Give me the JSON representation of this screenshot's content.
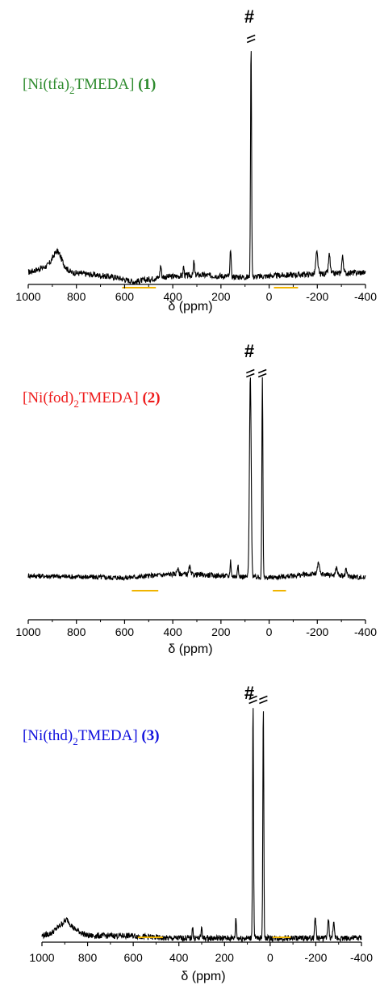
{
  "chart_data": [
    {
      "type": "line",
      "compound": {
        "name": "[Ni(tfa)",
        "sub": "2",
        "rest": "TMEDA]",
        "number": "(1)",
        "color": "#2e8b2e"
      },
      "xlabel": "δ (ppm)",
      "xlim": [
        1000,
        -400
      ],
      "xticks": [
        "1000",
        "800",
        "600",
        "400",
        "200",
        "0",
        "-200",
        "-400"
      ],
      "xtick_values": [
        1000,
        800,
        600,
        400,
        200,
        0,
        -200,
        -400
      ],
      "annotation": "#",
      "series": [
        {
          "baseline": [
            [
              1000,
              0.02
            ],
            [
              880,
              0.06
            ],
            [
              820,
              0.02
            ],
            [
              640,
              0.0
            ],
            [
              560,
              -0.02
            ],
            [
              450,
              0.0
            ],
            [
              300,
              0.01
            ],
            [
              100,
              0.0
            ],
            [
              -100,
              0.01
            ],
            [
              -400,
              0.02
            ]
          ],
          "peaks": [
            {
              "x": 880,
              "height": 0.05,
              "width": 25
            },
            {
              "x": 450,
              "height": 0.05,
              "width": 4
            },
            {
              "x": 355,
              "height": 0.04,
              "width": 3
            },
            {
              "x": 312,
              "height": 0.06,
              "width": 3
            },
            {
              "x": 160,
              "height": 0.12,
              "width": 3
            },
            {
              "x": 75,
              "height": 1.0,
              "width": 3,
              "broken": true
            },
            {
              "x": -198,
              "height": 0.09,
              "width": 6
            },
            {
              "x": -250,
              "height": 0.08,
              "width": 5
            },
            {
              "x": -305,
              "height": 0.07,
              "width": 5
            }
          ]
        }
      ],
      "highlights": [
        [
          610,
          470
        ],
        [
          -20,
          -120
        ]
      ],
      "highlight_color": "#f0b400"
    },
    {
      "type": "line",
      "compound": {
        "name": "[Ni(fod)",
        "sub": "2",
        "rest": "TMEDA]",
        "number": "(2)",
        "color": "#ee1c1c"
      },
      "xlabel": "δ (ppm)",
      "xlim": [
        1000,
        -400
      ],
      "xticks": [
        "1000",
        "800",
        "600",
        "400",
        "200",
        "0",
        "-200",
        "-400"
      ],
      "xtick_values": [
        1000,
        800,
        600,
        400,
        200,
        0,
        -200,
        -400
      ],
      "annotation": "#",
      "series": [
        {
          "baseline": [
            [
              1000,
              0.01
            ],
            [
              600,
              0.0
            ],
            [
              380,
              0.02
            ],
            [
              200,
              0.01
            ],
            [
              0,
              0.0
            ],
            [
              -200,
              0.02
            ],
            [
              -400,
              0.0
            ]
          ],
          "peaks": [
            {
              "x": 380,
              "height": 0.03,
              "width": 4
            },
            {
              "x": 330,
              "height": 0.04,
              "width": 4
            },
            {
              "x": 160,
              "height": 0.08,
              "width": 3
            },
            {
              "x": 130,
              "height": 0.06,
              "width": 3
            },
            {
              "x": 78,
              "height": 1.0,
              "width": 5,
              "broken": true
            },
            {
              "x": 28,
              "height": 1.0,
              "width": 3,
              "broken": true
            },
            {
              "x": -205,
              "height": 0.05,
              "width": 6
            },
            {
              "x": -280,
              "height": 0.04,
              "width": 5
            },
            {
              "x": -320,
              "height": 0.03,
              "width": 5
            }
          ]
        }
      ],
      "highlights": [
        [
          570,
          460
        ],
        [
          -15,
          -70
        ]
      ],
      "highlight_color": "#f0b400"
    },
    {
      "type": "line",
      "compound": {
        "name": "[Ni(thd)",
        "sub": "2",
        "rest": "TMEDA]",
        "number": "(3)",
        "color": "#1010dd"
      },
      "xlabel": "δ (ppm)",
      "xlim": [
        1000,
        -400
      ],
      "xticks": [
        "1000",
        "800",
        "600",
        "400",
        "200",
        "0",
        "-200",
        "-400"
      ],
      "xtick_values": [
        1000,
        800,
        600,
        400,
        200,
        0,
        -200,
        -400
      ],
      "annotation": "#",
      "series": [
        {
          "baseline": [
            [
              1000,
              0.01
            ],
            [
              960,
              0.02
            ],
            [
              890,
              0.08
            ],
            [
              860,
              0.04
            ],
            [
              800,
              0.01
            ],
            [
              600,
              0.01
            ],
            [
              470,
              0.0
            ],
            [
              200,
              0.0
            ],
            [
              0,
              0.0
            ],
            [
              -400,
              0.0
            ]
          ],
          "peaks": [
            {
              "x": 340,
              "height": 0.05,
              "width": 3
            },
            {
              "x": 300,
              "height": 0.05,
              "width": 3
            },
            {
              "x": 150,
              "height": 0.09,
              "width": 3
            },
            {
              "x": 75,
              "height": 1.0,
              "width": 3,
              "broken": true
            },
            {
              "x": 30,
              "height": 1.0,
              "width": 3,
              "broken": true
            },
            {
              "x": -198,
              "height": 0.09,
              "width": 4
            },
            {
              "x": -255,
              "height": 0.08,
              "width": 4
            },
            {
              "x": -278,
              "height": 0.07,
              "width": 4
            }
          ]
        }
      ],
      "highlights": [
        [
          580,
          470
        ],
        [
          -10,
          -90
        ]
      ],
      "highlight_color": "#f0b400"
    }
  ]
}
